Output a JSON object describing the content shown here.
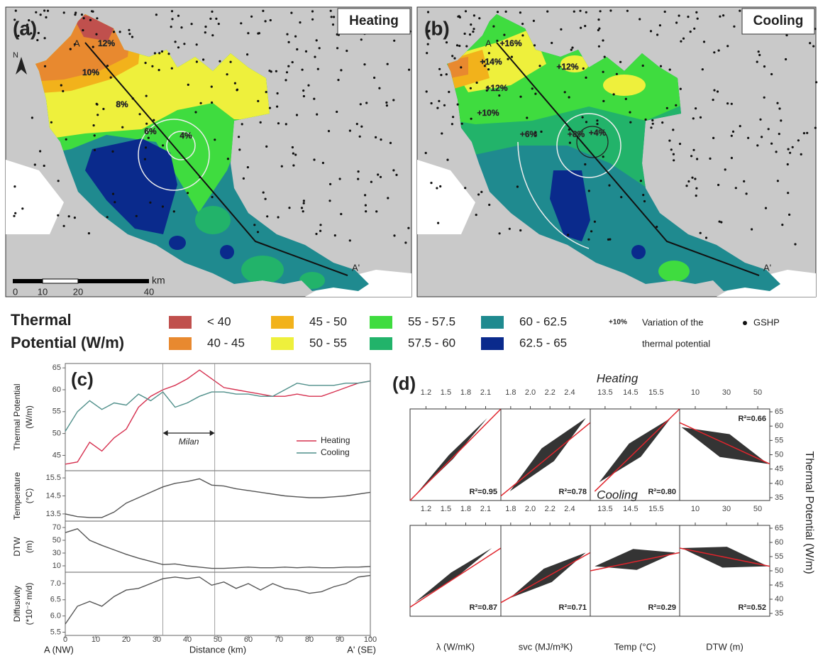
{
  "maps": [
    {
      "label": "(a)",
      "title": "Heating",
      "start": "A",
      "end": "A'",
      "contours": [
        "12%",
        "10%",
        "8%",
        "6%",
        "4%"
      ]
    },
    {
      "label": "(b)",
      "title": "Cooling",
      "start": "A",
      "end": "A'",
      "contours": [
        "+16%",
        "+14%",
        "+12%",
        "+12%",
        "+10%",
        "+8%",
        "+6%",
        "+4%"
      ]
    }
  ],
  "north": "N",
  "scale_bar": {
    "ticks": [
      "0",
      "10",
      "20",
      "40"
    ],
    "unit": "km"
  },
  "legend": {
    "title_lines": [
      "Thermal",
      "Potential (W/m)"
    ],
    "classes": [
      {
        "label": "< 40",
        "color": "#c0504d"
      },
      {
        "label": "40 - 45",
        "color": "#e8892f"
      },
      {
        "label": "45 - 50",
        "color": "#f2b21b"
      },
      {
        "label": "50 - 55",
        "color": "#eef03c"
      },
      {
        "label": "55 - 57.5",
        "color": "#3fdc3f"
      },
      {
        "label": "57.5 - 60",
        "color": "#22b36a"
      },
      {
        "label": "60 - 62.5",
        "color": "#1f8a8f"
      },
      {
        "label": "62.5 - 65",
        "color": "#0a2a8c"
      }
    ],
    "variation_sample": "+10%",
    "variation_lines": [
      "Variation of the",
      "thermal potential"
    ],
    "gshp": "GSHP"
  },
  "chart_data": [
    {
      "type": "line",
      "label": "(c)",
      "ylabel_lines": [
        "Thermal Potential",
        "(W/m)"
      ],
      "x": [
        0,
        4,
        8,
        12,
        16,
        20,
        24,
        28,
        32,
        36,
        40,
        44,
        48,
        52,
        56,
        60,
        64,
        68,
        72,
        76,
        80,
        84,
        88,
        92,
        96,
        100
      ],
      "xlim": [
        0,
        100
      ],
      "series": [
        {
          "name": "Heating",
          "color": "#d6304f",
          "values": [
            43,
            43.5,
            48,
            46,
            49,
            51,
            56,
            58.5,
            60,
            61,
            62.5,
            64.5,
            62.5,
            60.5,
            60,
            59.5,
            59,
            58.5,
            58.5,
            59,
            58.5,
            58.5,
            59.5,
            60.5,
            61.5,
            62
          ]
        },
        {
          "name": "Cooling",
          "color": "#4f8f8a",
          "values": [
            50.5,
            55,
            57.5,
            55.5,
            57,
            56.5,
            59,
            57.5,
            59.5,
            56,
            57,
            58.5,
            59.5,
            59.5,
            59,
            59,
            58.5,
            58.5,
            60,
            61.5,
            61,
            61,
            61,
            61.5,
            61.5,
            62
          ]
        }
      ],
      "ylim": [
        41.5,
        66
      ],
      "yticks": [
        45,
        50,
        55,
        60,
        65
      ],
      "vlines": [
        32,
        49
      ],
      "annotation": "Milan"
    },
    {
      "type": "line",
      "ylabel_lines": [
        "Temperature",
        "(°C)"
      ],
      "x": [
        0,
        4,
        8,
        12,
        16,
        20,
        24,
        28,
        32,
        36,
        40,
        44,
        48,
        52,
        56,
        60,
        64,
        68,
        72,
        76,
        80,
        84,
        88,
        92,
        96,
        100
      ],
      "xlim": [
        0,
        100
      ],
      "series": [
        {
          "color": "#555555",
          "values": [
            13.5,
            13.35,
            13.3,
            13.3,
            13.6,
            14.1,
            14.4,
            14.7,
            15.0,
            15.2,
            15.3,
            15.45,
            15.1,
            15.05,
            14.9,
            14.8,
            14.7,
            14.6,
            14.5,
            14.45,
            14.4,
            14.4,
            14.45,
            14.5,
            14.6,
            14.7
          ]
        }
      ],
      "ylim": [
        13.1,
        15.9
      ],
      "yticks": [
        13.5,
        14.5,
        15.5
      ]
    },
    {
      "type": "line",
      "ylabel_lines": [
        "DTW",
        "(m)"
      ],
      "x": [
        0,
        4,
        8,
        12,
        16,
        20,
        24,
        28,
        32,
        36,
        40,
        44,
        48,
        52,
        56,
        60,
        64,
        68,
        72,
        76,
        80,
        84,
        88,
        92,
        96,
        100
      ],
      "xlim": [
        0,
        100
      ],
      "series": [
        {
          "color": "#555555",
          "values": [
            62,
            68,
            50,
            42,
            35,
            28,
            22,
            17,
            12,
            13,
            10,
            8,
            6,
            6,
            7,
            8,
            7,
            7,
            8,
            7,
            8,
            7,
            7,
            8,
            8,
            9
          ]
        }
      ],
      "ylim": [
        0,
        80
      ],
      "yticks": [
        10,
        30,
        50,
        70
      ]
    },
    {
      "type": "line",
      "ylabel_lines": [
        "Diffusivity",
        "(*10⁻² m/d)"
      ],
      "x": [
        0,
        4,
        8,
        12,
        16,
        20,
        24,
        28,
        32,
        36,
        40,
        44,
        48,
        52,
        56,
        60,
        64,
        68,
        72,
        76,
        80,
        84,
        88,
        92,
        96,
        100
      ],
      "xlim": [
        0,
        100
      ],
      "xticks": [
        0,
        10,
        20,
        30,
        40,
        50,
        60,
        70,
        80,
        90,
        100
      ],
      "xlabel": "Distance (km)",
      "x_start_label": "A (NW)",
      "x_end_label": "A' (SE)",
      "series": [
        {
          "color": "#555555",
          "values": [
            5.75,
            6.3,
            6.45,
            6.3,
            6.6,
            6.8,
            6.85,
            7.0,
            7.15,
            7.2,
            7.15,
            7.2,
            6.95,
            7.05,
            6.85,
            7.0,
            6.8,
            7.0,
            6.85,
            6.8,
            6.7,
            6.75,
            6.9,
            7.0,
            7.2,
            7.25
          ]
        }
      ],
      "ylim": [
        5.4,
        7.35
      ],
      "yticks": [
        5.5,
        {
          "value": 6,
          "label": "6.0"
        },
        6.5,
        {
          "value": 7,
          "label": "7.0"
        }
      ]
    }
  ],
  "panel_d": {
    "label": "(d)",
    "ylabel": "Thermal Potential (W/m)",
    "ylim": [
      34,
      66
    ],
    "yticks": [
      35,
      40,
      45,
      50,
      55,
      60,
      65
    ],
    "columns": [
      {
        "xlabel": "λ (W/mK)",
        "xlim": [
          0.96,
          2.33
        ],
        "xticks": [
          1.2,
          1.5,
          1.8,
          2.1
        ]
      },
      {
        "xlabel": "svc (MJ/m³K)",
        "xlim": [
          1.7,
          2.61
        ],
        "xticks": [
          1.8,
          {
            "value": 2,
            "label": "2.0"
          },
          2.2,
          2.4
        ]
      },
      {
        "xlabel": "Temp (°C)",
        "xlim": [
          12.92,
          16.42
        ],
        "xticks": [
          13.5,
          14.5,
          15.5
        ]
      },
      {
        "xlabel": "DTW (m)",
        "xlim": [
          0,
          57.7
        ],
        "xticks": [
          10,
          30,
          50
        ]
      }
    ],
    "rows": [
      {
        "title": "Heating",
        "r2": [
          "R²=0.95",
          "R²=0.78",
          "R²=0.80",
          "R²=0.66"
        ]
      },
      {
        "title": "Cooling",
        "r2": [
          "R²=0.87",
          "R²=0.71",
          "R²=0.29",
          "R²=0.52"
        ]
      }
    ]
  }
}
